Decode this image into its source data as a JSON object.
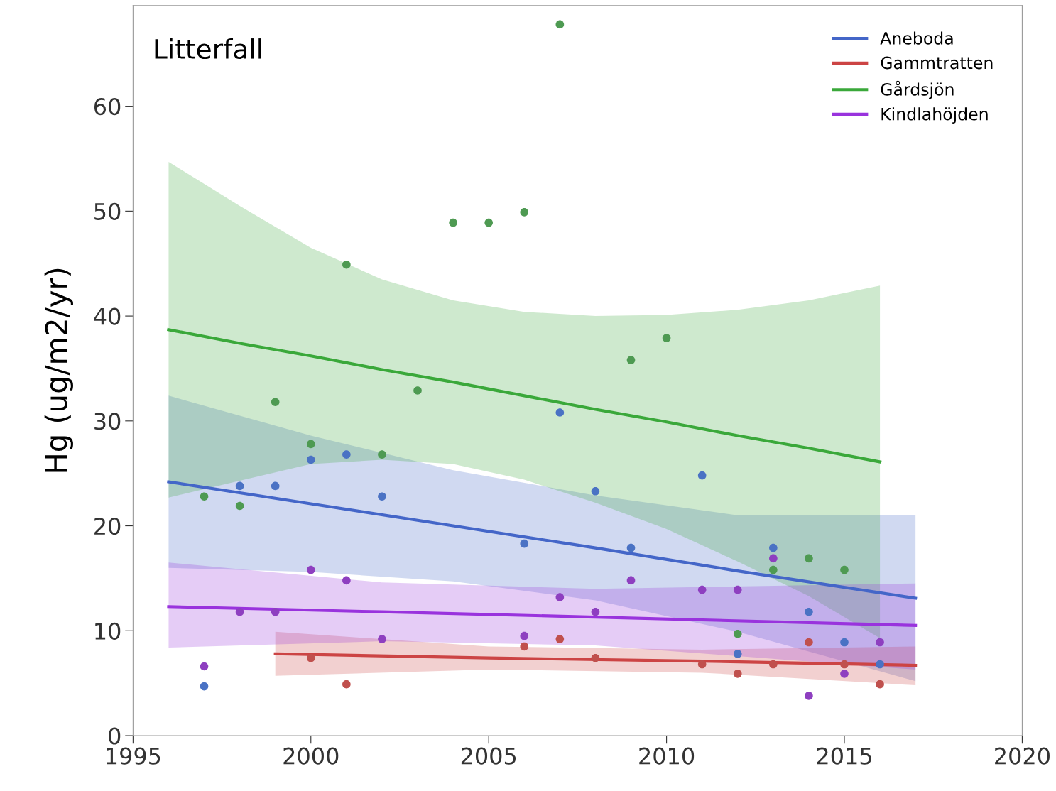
{
  "chart_data": {
    "type": "scatter",
    "title": "Litterfall",
    "ylabel": "Hg (ug/m2/yr)",
    "xlim": [
      1995,
      2020
    ],
    "ylim": [
      0,
      69.6
    ],
    "xticks": [
      1995,
      2000,
      2005,
      2010,
      2015,
      2020
    ],
    "yticks": [
      0,
      10,
      20,
      30,
      40,
      50,
      60
    ],
    "grid": false,
    "legend": "top right",
    "series": [
      {
        "type": "line",
        "name": "Aneboda",
        "color": "#4466c8",
        "x": [
          1996,
          2000,
          2004,
          2008,
          2012,
          2017
        ],
        "values": [
          24.2,
          22.1,
          20.0,
          17.9,
          15.7,
          13.1
        ],
        "lower": [
          16.0,
          15.6,
          14.7,
          12.9,
          9.9,
          5.2
        ],
        "upper": [
          32.4,
          28.6,
          25.3,
          22.9,
          21.0,
          21.0
        ]
      },
      {
        "type": "line",
        "name": "Gammtratten",
        "color": "#cc4444",
        "x": [
          1999,
          2005,
          2011,
          2017
        ],
        "values": [
          7.8,
          7.4,
          7.1,
          6.7
        ],
        "lower": [
          5.7,
          6.3,
          6.0,
          4.8
        ],
        "upper": [
          9.9,
          8.5,
          8.2,
          8.5
        ]
      },
      {
        "type": "line",
        "name": "Gårdsjön",
        "color": "#3aa83a",
        "x": [
          1996,
          1998,
          2000,
          2002,
          2004,
          2006,
          2008,
          2010,
          2012,
          2014,
          2016
        ],
        "values": [
          38.7,
          37.4,
          36.2,
          34.9,
          33.7,
          32.4,
          31.1,
          29.9,
          28.6,
          27.4,
          26.1
        ],
        "lower": [
          22.7,
          24.3,
          25.9,
          26.3,
          25.9,
          24.4,
          22.2,
          19.7,
          16.6,
          13.3,
          9.3
        ],
        "upper": [
          54.7,
          50.5,
          46.5,
          43.5,
          41.5,
          40.4,
          40.0,
          40.1,
          40.6,
          41.5,
          42.9
        ]
      },
      {
        "type": "line",
        "name": "Kindlahöjden",
        "color": "#9933dd",
        "x": [
          1996,
          2002,
          2008,
          2017
        ],
        "values": [
          12.3,
          11.8,
          11.3,
          10.5
        ],
        "lower": [
          8.4,
          9.0,
          8.6,
          6.3
        ],
        "upper": [
          16.5,
          14.6,
          14.0,
          14.5
        ]
      },
      {
        "color": "#4a72c4",
        "marker": "circle",
        "x": [
          1997,
          1998,
          1999,
          2000,
          2001,
          2002,
          2006,
          2007,
          2008,
          2009,
          2011,
          2012,
          2013,
          2014,
          2015,
          2016
        ],
        "values": [
          4.7,
          23.8,
          23.8,
          26.3,
          26.8,
          22.8,
          18.3,
          30.8,
          23.3,
          17.9,
          24.8,
          7.8,
          17.9,
          11.8,
          8.9,
          6.8
        ]
      },
      {
        "color": "#c0504d",
        "marker": "circle",
        "x": [
          2000,
          2001,
          2006,
          2007,
          2008,
          2011,
          2012,
          2013,
          2014,
          2015,
          2016
        ],
        "values": [
          7.4,
          4.9,
          8.5,
          9.2,
          7.4,
          6.8,
          5.9,
          6.8,
          8.9,
          6.8,
          4.9
        ]
      },
      {
        "color": "#4e9a52",
        "marker": "circle",
        "x": [
          1997,
          1998,
          1999,
          2000,
          2001,
          2002,
          2003,
          2004,
          2005,
          2006,
          2007,
          2009,
          2010,
          2012,
          2013,
          2014,
          2015
        ],
        "values": [
          22.8,
          21.9,
          31.8,
          27.8,
          44.9,
          26.8,
          32.9,
          48.9,
          48.9,
          49.9,
          67.8,
          35.8,
          37.9,
          9.7,
          15.8,
          16.9,
          15.8
        ]
      },
      {
        "color": "#8e3fc0",
        "marker": "circle",
        "x": [
          1997,
          1998,
          1999,
          2000,
          2001,
          2002,
          2006,
          2007,
          2008,
          2009,
          2011,
          2012,
          2013,
          2014,
          2015,
          2016
        ],
        "values": [
          6.6,
          11.8,
          11.8,
          15.8,
          14.8,
          9.2,
          9.5,
          13.2,
          11.8,
          14.8,
          13.9,
          13.9,
          16.9,
          3.8,
          5.9,
          8.9
        ]
      }
    ]
  }
}
